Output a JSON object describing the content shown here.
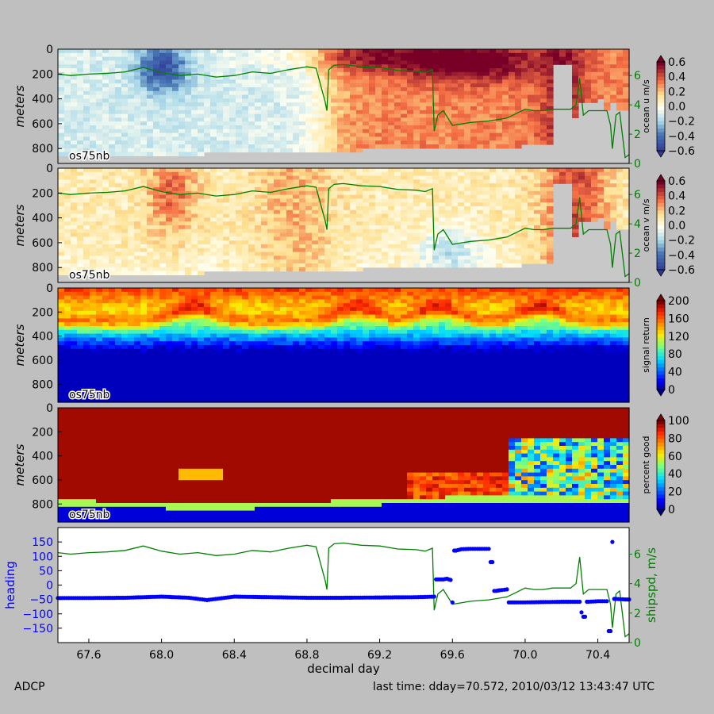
{
  "footer": {
    "left": "ADCP",
    "right": "last time: dday=70.572,  2010/03/12 13:43:47 UTC"
  },
  "colors": {
    "background": "#bfbfbf",
    "nodata": "#c8c8c8",
    "shipspd": "#008000",
    "heading": "#0000ff"
  },
  "chart_data": [
    {
      "type": "heatmap",
      "panel_label": "os75nb",
      "ylabel": "meters",
      "yticks": [
        0,
        200,
        400,
        600,
        800
      ],
      "ylim": [
        0,
        920
      ],
      "colorbar": {
        "label": "ocean u m/s",
        "ticks": [
          "0.6",
          "0.4",
          "0.2",
          "0.0",
          "−0.2",
          "−0.4",
          "−0.6"
        ],
        "range": [
          -0.65,
          0.65
        ],
        "colormap": "RdYlBu_r"
      },
      "right_axis": {
        "ticks": [
          "6",
          "4",
          "2",
          "0"
        ],
        "color": "#008000"
      },
      "xlim": [
        67.43,
        70.572
      ]
    },
    {
      "type": "heatmap",
      "panel_label": "os75nb",
      "ylabel": "meters",
      "yticks": [
        0,
        200,
        400,
        600,
        800
      ],
      "ylim": [
        0,
        920
      ],
      "colorbar": {
        "label": "ocean v m/s",
        "ticks": [
          "0.6",
          "0.4",
          "0.2",
          "0.0",
          "−0.2",
          "−0.4",
          "−0.6"
        ],
        "range": [
          -0.65,
          0.65
        ],
        "colormap": "RdYlBu_r"
      },
      "right_axis": {
        "ticks": [
          "6",
          "4",
          "2",
          "0"
        ],
        "color": "#008000"
      },
      "xlim": [
        67.43,
        70.572
      ]
    },
    {
      "type": "heatmap",
      "panel_label": "os75nb",
      "ylabel": "meters",
      "yticks": [
        0,
        200,
        400,
        600,
        800
      ],
      "ylim": [
        0,
        950
      ],
      "colorbar": {
        "label": "signal return",
        "ticks": [
          "200",
          "160",
          "120",
          "80",
          "40",
          "0"
        ],
        "range": [
          0,
          200
        ],
        "colormap": "jet"
      },
      "xlim": [
        67.43,
        70.572
      ]
    },
    {
      "type": "heatmap",
      "panel_label": "os75nb",
      "ylabel": "meters",
      "yticks": [
        0,
        200,
        400,
        600,
        800
      ],
      "ylim": [
        0,
        950
      ],
      "colorbar": {
        "label": "percent good",
        "ticks": [
          "100",
          "80",
          "60",
          "40",
          "20",
          "0"
        ],
        "range": [
          0,
          100
        ],
        "colormap": "jet"
      },
      "xlim": [
        67.43,
        70.572
      ]
    },
    {
      "type": "line",
      "xlabel": "decimal day",
      "xticks": [
        "67.6",
        "68.0",
        "68.4",
        "68.8",
        "69.2",
        "69.6",
        "70.0",
        "70.4"
      ],
      "xlim": [
        67.43,
        70.572
      ],
      "left_axis": {
        "label": "heading",
        "ticks": [
          "150",
          "100",
          "50",
          "0",
          "−50",
          "−100",
          "−150"
        ],
        "ylim": [
          -200,
          200
        ],
        "color": "#0000ff"
      },
      "right_axis": {
        "label": "shipspd, m/s",
        "ticks": [
          "6",
          "4",
          "2",
          "0"
        ],
        "ylim": [
          0,
          7.8
        ],
        "color": "#008000"
      },
      "series": [
        {
          "x": [
            67.43,
            67.5,
            67.6,
            67.7,
            67.8,
            67.9,
            68.0,
            68.1,
            68.2,
            68.3,
            68.4,
            68.5,
            68.6,
            68.7,
            68.8,
            68.85,
            68.9,
            68.91,
            68.92,
            68.95,
            69.0,
            69.1,
            69.2,
            69.3,
            69.4,
            69.45,
            69.49,
            69.5,
            69.52,
            69.55,
            69.6,
            69.7,
            69.8,
            69.9,
            69.95,
            70.0,
            70.05,
            70.1,
            70.15,
            70.2,
            70.25,
            70.28,
            70.3,
            70.32,
            70.35,
            70.4,
            70.45,
            70.47,
            70.48,
            70.5,
            70.52,
            70.55,
            70.572
          ],
          "y": [
            6.1,
            6.0,
            6.1,
            6.15,
            6.25,
            6.55,
            6.2,
            6.0,
            6.1,
            5.9,
            6.0,
            6.25,
            6.15,
            6.4,
            6.6,
            6.5,
            4.2,
            3.6,
            6.4,
            6.7,
            6.75,
            6.6,
            6.55,
            6.35,
            6.3,
            6.2,
            6.4,
            2.2,
            3.3,
            3.6,
            2.6,
            2.8,
            2.9,
            3.1,
            3.4,
            3.7,
            3.6,
            3.6,
            3.7,
            3.7,
            3.7,
            4.0,
            5.8,
            3.3,
            3.6,
            3.6,
            3.6,
            2.6,
            1.0,
            3.3,
            3.5,
            0.4,
            0.6
          ]
        },
        {
          "x": [
            67.43,
            67.6,
            67.8,
            68.0,
            68.15,
            68.25,
            68.4,
            68.6,
            68.8,
            69.0,
            69.2,
            69.4,
            69.5,
            69.52,
            69.55,
            69.57,
            69.59,
            69.6,
            69.62,
            69.65,
            69.7,
            69.75,
            69.8,
            69.82,
            69.84,
            69.86,
            69.9,
            69.92,
            69.95,
            70.0,
            70.1,
            70.2,
            70.3,
            70.31,
            70.32,
            70.35,
            70.4,
            70.45,
            70.47,
            70.48,
            70.5,
            70.55,
            70.572
          ],
          "y": [
            -45,
            -45,
            -44,
            -40,
            -44,
            -52,
            -40,
            -42,
            -44,
            -44,
            -43,
            -42,
            -40,
            20,
            20,
            22,
            18,
            -60,
            120,
            125,
            126,
            126,
            126,
            80,
            -20,
            -18,
            -15,
            -60,
            -60,
            -60,
            -59,
            -58,
            -58,
            -95,
            -110,
            -58,
            -56,
            -56,
            -160,
            150,
            -48,
            -50,
            -50
          ]
        }
      ]
    }
  ]
}
